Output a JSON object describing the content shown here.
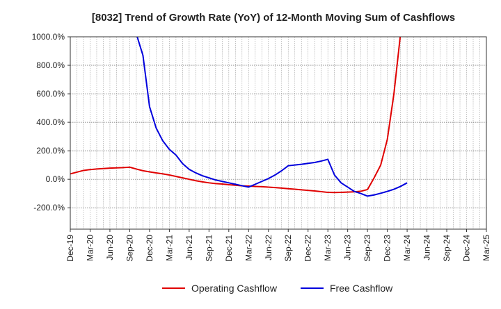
{
  "chart_data": {
    "type": "line",
    "title": "[8032]  Trend of Growth Rate (YoY) of 12-Month Moving Sum of Cashflows",
    "xlabel": "",
    "ylabel": "",
    "ylim": [
      -350,
      1000
    ],
    "y_ticks": [
      1000,
      800,
      600,
      400,
      200,
      0,
      -200
    ],
    "y_tick_labels": [
      "1000.0%",
      "800.0%",
      "600.0%",
      "400.0%",
      "200.0%",
      "0.0%",
      "-200.0%"
    ],
    "x_tick_labels": [
      "Dec-19",
      "Mar-20",
      "Jun-20",
      "Sep-20",
      "Dec-20",
      "Mar-21",
      "Jun-21",
      "Sep-21",
      "Dec-21",
      "Mar-22",
      "Jun-22",
      "Sep-22",
      "Dec-22",
      "Mar-23",
      "Jun-23",
      "Sep-23",
      "Dec-23",
      "Mar-24",
      "Jun-24",
      "Sep-24",
      "Dec-24",
      "Mar-25"
    ],
    "grid": true,
    "legend_placement": "bottom-center",
    "series": [
      {
        "name": "Operating Cashflow",
        "color": "#e00000",
        "x": [
          "Dec-19",
          "Jan-20",
          "Feb-20",
          "Mar-20",
          "Apr-20",
          "May-20",
          "Jun-20",
          "Jul-20",
          "Aug-20",
          "Sep-20",
          "Oct-20",
          "Nov-20",
          "Dec-20",
          "Jan-21",
          "Feb-21",
          "Mar-21",
          "Apr-21",
          "May-21",
          "Jun-21",
          "Jul-21",
          "Aug-21",
          "Sep-21",
          "Oct-21",
          "Nov-21",
          "Dec-21",
          "Jan-22",
          "Feb-22",
          "Mar-22",
          "Apr-22",
          "May-22",
          "Jun-22",
          "Jul-22",
          "Aug-22",
          "Sep-22",
          "Oct-22",
          "Nov-22",
          "Dec-22",
          "Jan-23",
          "Feb-23",
          "Mar-23",
          "Apr-23",
          "May-23",
          "Jun-23",
          "Jul-23",
          "Aug-23",
          "Sep-23",
          "Oct-23",
          "Nov-23",
          "Dec-23",
          "Jan-24",
          "Feb-24"
        ],
        "values": [
          38,
          50,
          62,
          68,
          72,
          75,
          78,
          80,
          82,
          85,
          72,
          60,
          52,
          45,
          38,
          30,
          20,
          10,
          0,
          -10,
          -18,
          -25,
          -30,
          -33,
          -38,
          -42,
          -46,
          -48,
          -50,
          -52,
          -55,
          -58,
          -62,
          -66,
          -70,
          -74,
          -78,
          -82,
          -87,
          -92,
          -93,
          -92,
          -90,
          -88,
          -84,
          -72,
          10,
          100,
          280,
          600,
          1020
        ]
      },
      {
        "name": "Free Cashflow",
        "color": "#0000dd",
        "x": [
          "Oct-20",
          "Nov-20",
          "Dec-20",
          "Jan-21",
          "Feb-21",
          "Mar-21",
          "Apr-21",
          "May-21",
          "Jun-21",
          "Jul-21",
          "Aug-21",
          "Sep-21",
          "Oct-21",
          "Nov-21",
          "Dec-21",
          "Jan-22",
          "Feb-22",
          "Mar-22",
          "Apr-22",
          "May-22",
          "Jun-22",
          "Jul-22",
          "Aug-22",
          "Sep-22",
          "Oct-22",
          "Nov-22",
          "Dec-22",
          "Jan-23",
          "Feb-23",
          "Mar-23",
          "Apr-23",
          "May-23",
          "Jun-23",
          "Jul-23",
          "Aug-23",
          "Sep-23",
          "Oct-23",
          "Nov-23",
          "Dec-23",
          "Jan-24",
          "Feb-24",
          "Mar-24"
        ],
        "values": [
          1020,
          870,
          510,
          360,
          270,
          210,
          170,
          110,
          70,
          45,
          25,
          10,
          -5,
          -15,
          -25,
          -35,
          -45,
          -55,
          -35,
          -15,
          5,
          30,
          60,
          95,
          100,
          105,
          112,
          118,
          128,
          140,
          30,
          -25,
          -55,
          -85,
          -100,
          -118,
          -110,
          -98,
          -85,
          -70,
          -50,
          -25
        ]
      }
    ]
  }
}
